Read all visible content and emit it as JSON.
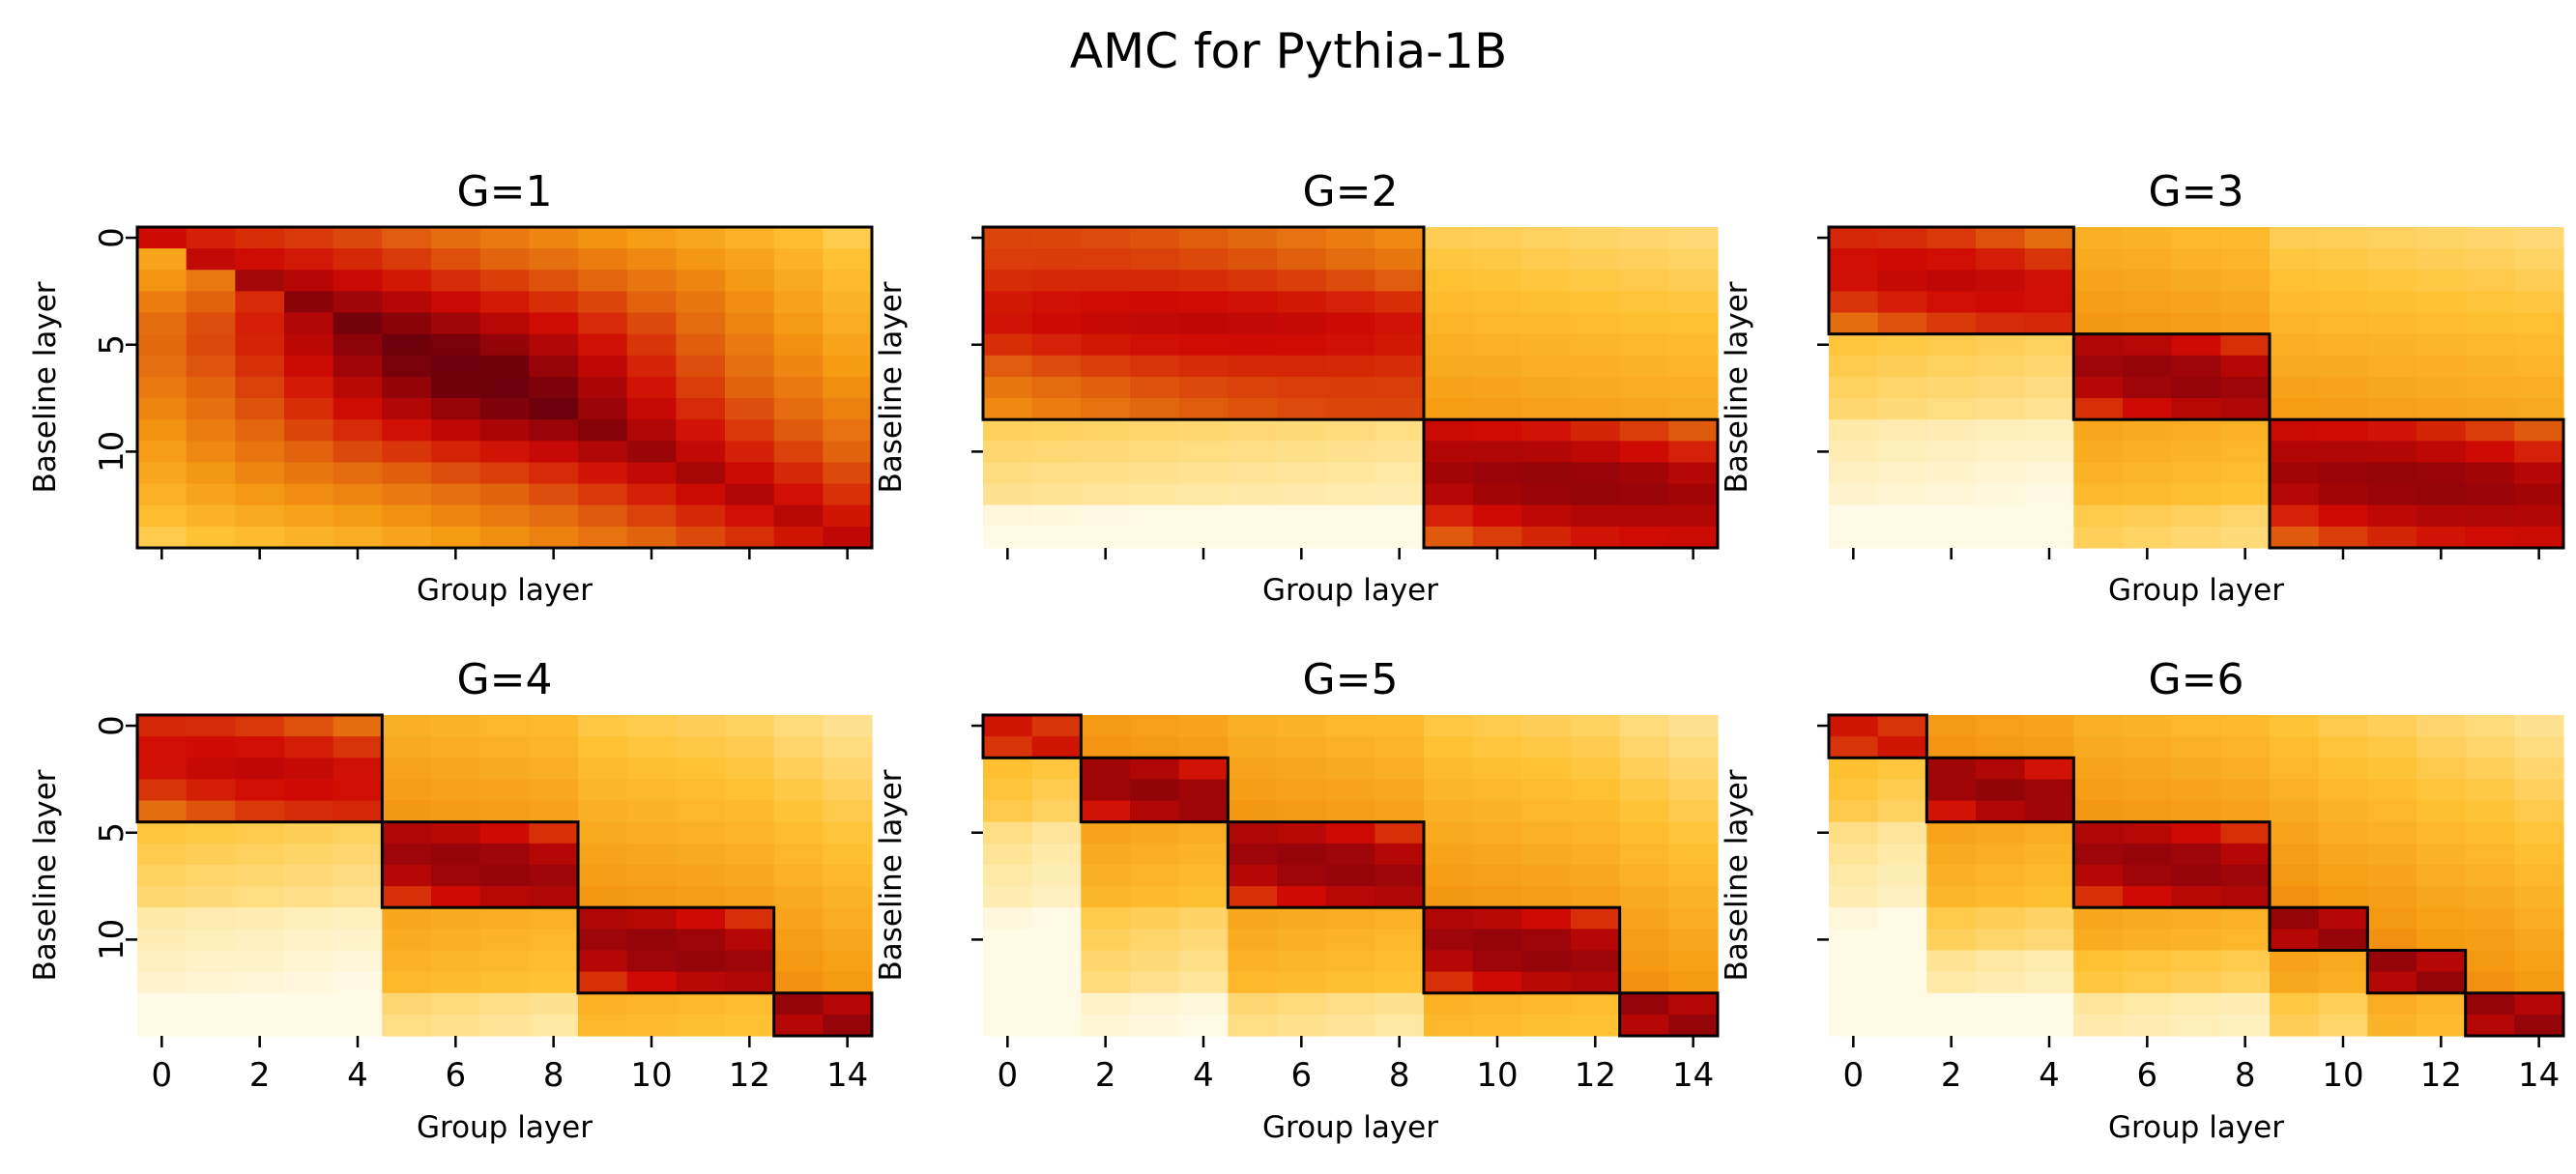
{
  "chart_data": {
    "type": "heatmap",
    "title": "AMC for Pythia-1B",
    "layers": 15,
    "x_ticks": [
      0,
      2,
      4,
      6,
      8,
      10,
      12,
      14
    ],
    "y_ticks": [
      0,
      5,
      10
    ],
    "panels": [
      {
        "title": "G=1",
        "xlabel": "Group layer",
        "ylabel": "Baseline layer",
        "show_y_ticklabels": true,
        "show_x_ticklabels": false,
        "boundaries": [
          0,
          15
        ]
      },
      {
        "title": "G=2",
        "xlabel": "Group layer",
        "ylabel": "Baseline layer",
        "show_y_ticklabels": false,
        "show_x_ticklabels": false,
        "boundaries": [
          0,
          9,
          15
        ]
      },
      {
        "title": "G=3",
        "xlabel": "Group layer",
        "ylabel": "Baseline layer",
        "show_y_ticklabels": false,
        "show_x_ticklabels": false,
        "boundaries": [
          0,
          5,
          9,
          15
        ]
      },
      {
        "title": "G=4",
        "xlabel": "Group layer",
        "ylabel": "Baseline layer",
        "show_y_ticklabels": true,
        "show_x_ticklabels": true,
        "boundaries": [
          0,
          5,
          9,
          13,
          15
        ]
      },
      {
        "title": "G=5",
        "xlabel": "Group layer",
        "ylabel": "Baseline layer",
        "show_y_ticklabels": false,
        "show_x_ticklabels": true,
        "boundaries": [
          0,
          2,
          5,
          9,
          13,
          15
        ]
      },
      {
        "title": "G=6",
        "xlabel": "Group layer",
        "ylabel": "Baseline layer",
        "show_y_ticklabels": false,
        "show_x_ticklabels": true,
        "boundaries": [
          0,
          2,
          5,
          9,
          11,
          13,
          15
        ]
      }
    ],
    "colormap": "YlOrRd (white → yellow → orange → red → dark red)",
    "colors": [
      "#fffef4",
      "#ffe9a6",
      "#ffc233",
      "#f59a12",
      "#e2640e",
      "#cf0a04",
      "#6e000b"
    ],
    "value_range": [
      0,
      1
    ],
    "note_values": "cell intensities estimated from color; 1 = darkest"
  }
}
